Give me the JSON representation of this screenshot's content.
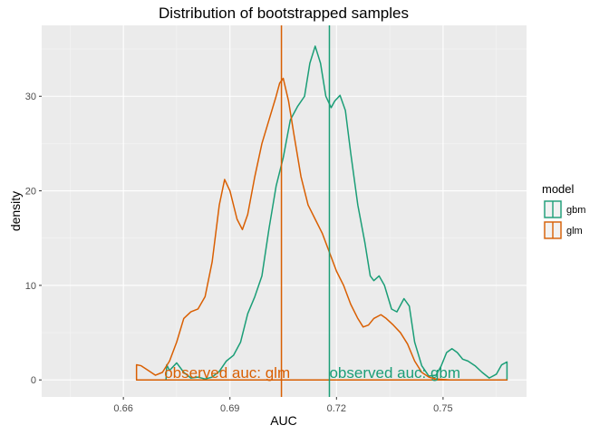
{
  "chart_data": {
    "type": "line",
    "title": "Distribution of bootstrapped samples",
    "xlabel": "AUC",
    "ylabel": "density",
    "xlim": [
      0.637,
      0.7735
    ],
    "ylim": [
      -1.8,
      37.5
    ],
    "x_ticks": [
      0.66,
      0.69,
      0.72,
      0.75
    ],
    "x_tick_labels": [
      "0.66",
      "0.69",
      "0.72",
      "0.75"
    ],
    "y_ticks": [
      0,
      10,
      20,
      30
    ],
    "y_tick_labels": [
      "0",
      "10",
      "20",
      "30"
    ],
    "grid": true,
    "legend": {
      "title": "model",
      "placement": "right",
      "entries": [
        "gbm",
        "glm"
      ]
    },
    "colors": {
      "gbm": "#1b9e77",
      "glm": "#d95f02"
    },
    "series": [
      {
        "name": "gbm",
        "color": "#1b9e77",
        "points": [
          [
            0.672,
            0.0
          ],
          [
            0.6722,
            1.6
          ],
          [
            0.673,
            1.0
          ],
          [
            0.675,
            1.8
          ],
          [
            0.677,
            0.8
          ],
          [
            0.679,
            0.2
          ],
          [
            0.681,
            0.3
          ],
          [
            0.683,
            0.1
          ],
          [
            0.685,
            0.3
          ],
          [
            0.687,
            0.9
          ],
          [
            0.689,
            2.0
          ],
          [
            0.691,
            2.6
          ],
          [
            0.693,
            4.0
          ],
          [
            0.695,
            7.0
          ],
          [
            0.697,
            8.8
          ],
          [
            0.699,
            11.0
          ],
          [
            0.701,
            16.0
          ],
          [
            0.703,
            20.5
          ],
          [
            0.705,
            23.5
          ],
          [
            0.707,
            27.5
          ],
          [
            0.709,
            28.9
          ],
          [
            0.711,
            30.0
          ],
          [
            0.7125,
            33.5
          ],
          [
            0.714,
            35.3
          ],
          [
            0.7155,
            33.5
          ],
          [
            0.717,
            30.0
          ],
          [
            0.7185,
            28.8
          ],
          [
            0.7195,
            29.5
          ],
          [
            0.721,
            30.1
          ],
          [
            0.7225,
            28.5
          ],
          [
            0.724,
            24.0
          ],
          [
            0.726,
            18.5
          ],
          [
            0.728,
            14.5
          ],
          [
            0.7295,
            11.0
          ],
          [
            0.7305,
            10.5
          ],
          [
            0.732,
            11.0
          ],
          [
            0.7335,
            10.0
          ],
          [
            0.7355,
            7.5
          ],
          [
            0.737,
            7.2
          ],
          [
            0.739,
            8.6
          ],
          [
            0.7405,
            7.8
          ],
          [
            0.742,
            4.0
          ],
          [
            0.744,
            1.5
          ],
          [
            0.746,
            0.4
          ],
          [
            0.748,
            0.5
          ],
          [
            0.7495,
            1.5
          ],
          [
            0.751,
            2.9
          ],
          [
            0.7525,
            3.3
          ],
          [
            0.754,
            2.9
          ],
          [
            0.7555,
            2.2
          ],
          [
            0.757,
            2.0
          ],
          [
            0.759,
            1.5
          ],
          [
            0.761,
            0.8
          ],
          [
            0.763,
            0.2
          ],
          [
            0.765,
            0.6
          ],
          [
            0.7665,
            1.6
          ],
          [
            0.768,
            1.9
          ],
          [
            0.768,
            0.0
          ]
        ]
      },
      {
        "name": "glm",
        "color": "#d95f02",
        "points": [
          [
            0.6637,
            0.0
          ],
          [
            0.6637,
            1.6
          ],
          [
            0.665,
            1.5
          ],
          [
            0.667,
            1.0
          ],
          [
            0.669,
            0.5
          ],
          [
            0.671,
            0.8
          ],
          [
            0.673,
            2.0
          ],
          [
            0.675,
            4.0
          ],
          [
            0.677,
            6.5
          ],
          [
            0.679,
            7.2
          ],
          [
            0.681,
            7.5
          ],
          [
            0.683,
            8.8
          ],
          [
            0.685,
            12.5
          ],
          [
            0.687,
            18.5
          ],
          [
            0.6885,
            21.2
          ],
          [
            0.69,
            20.0
          ],
          [
            0.692,
            17.0
          ],
          [
            0.6935,
            15.9
          ],
          [
            0.695,
            17.5
          ],
          [
            0.697,
            21.5
          ],
          [
            0.699,
            25.0
          ],
          [
            0.701,
            27.5
          ],
          [
            0.703,
            30.0
          ],
          [
            0.704,
            31.4
          ],
          [
            0.705,
            31.9
          ],
          [
            0.7065,
            29.5
          ],
          [
            0.708,
            26.0
          ],
          [
            0.71,
            21.5
          ],
          [
            0.712,
            18.5
          ],
          [
            0.714,
            17.0
          ],
          [
            0.716,
            15.5
          ],
          [
            0.718,
            13.5
          ],
          [
            0.72,
            11.5
          ],
          [
            0.722,
            10.0
          ],
          [
            0.724,
            8.0
          ],
          [
            0.726,
            6.5
          ],
          [
            0.7275,
            5.6
          ],
          [
            0.729,
            5.8
          ],
          [
            0.7305,
            6.5
          ],
          [
            0.7325,
            6.9
          ],
          [
            0.734,
            6.5
          ],
          [
            0.736,
            5.8
          ],
          [
            0.738,
            5.0
          ],
          [
            0.74,
            3.8
          ],
          [
            0.742,
            2.0
          ],
          [
            0.744,
            0.8
          ],
          [
            0.746,
            0.3
          ],
          [
            0.748,
            0.1
          ],
          [
            0.752,
            0.0
          ],
          [
            0.768,
            0.0
          ]
        ]
      }
    ],
    "vlines": [
      {
        "series": "glm",
        "x": 0.7045
      },
      {
        "series": "gbm",
        "x": 0.718
      }
    ],
    "annotations": [
      {
        "series": "glm",
        "text": "observed auc: glm",
        "x": 0.6715,
        "y": 0
      },
      {
        "series": "gbm",
        "text": "observed auc: gbm",
        "x": 0.718,
        "y": 0
      }
    ]
  }
}
